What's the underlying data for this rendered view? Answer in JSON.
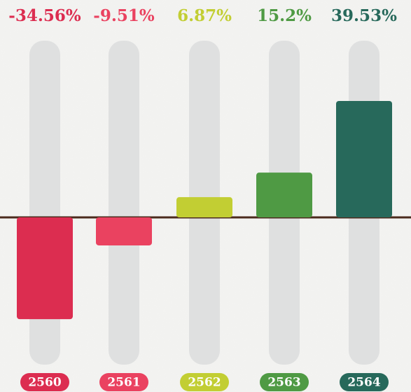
{
  "chart_data": {
    "type": "bar",
    "categories": [
      "2560",
      "2561",
      "2562",
      "2563",
      "2564"
    ],
    "values": [
      -34.56,
      -9.51,
      6.87,
      15.2,
      39.53
    ],
    "value_labels": [
      "-34.56%",
      "-9.51%",
      "6.87%",
      "15.2%",
      "39.53%"
    ],
    "colors": [
      "#dc2d50",
      "#ea4260",
      "#c2ce33",
      "#4f9a44",
      "#27695b"
    ],
    "ylim": [
      -50,
      60
    ]
  }
}
